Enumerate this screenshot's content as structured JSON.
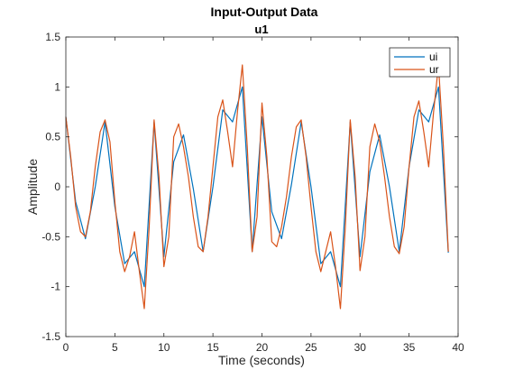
{
  "figure": {
    "title": "Input-Output Data",
    "subtitle": "u1"
  },
  "chart_data": {
    "type": "line",
    "title": "Input-Output Data",
    "subtitle": "u1",
    "xlabel": "Time (seconds)",
    "ylabel": "Amplitude",
    "xlim": [
      0,
      40
    ],
    "ylim": [
      -1.5,
      1.5
    ],
    "xticks": [
      0,
      5,
      10,
      15,
      20,
      25,
      30,
      35,
      40
    ],
    "yticks": [
      -1.5,
      -1,
      -0.5,
      0,
      0.5,
      1,
      1.5
    ],
    "xtick_labels": [
      "0",
      "5",
      "10",
      "15",
      "20",
      "25",
      "30",
      "35",
      "40"
    ],
    "ytick_labels": [
      "-1.5",
      "-1",
      "-0.5",
      "0",
      "0.5",
      "1",
      "1.5"
    ],
    "grid": false,
    "legend_position": "top-right",
    "series": [
      {
        "name": "ui",
        "color": "#0072BD",
        "x": [
          0,
          1,
          2,
          3,
          4,
          5,
          6,
          7,
          8,
          9,
          10,
          11,
          12,
          13,
          14,
          15,
          16,
          17,
          18,
          19,
          20,
          21,
          22,
          23,
          24,
          25,
          26,
          27,
          28,
          29,
          30,
          31,
          32,
          33,
          34,
          35,
          36,
          37,
          38,
          39
        ],
        "y": [
          0.7,
          -0.15,
          -0.52,
          0.0,
          0.65,
          -0.2,
          -0.77,
          -0.65,
          -1.0,
          0.65,
          -0.7,
          0.25,
          0.52,
          -0.02,
          -0.65,
          0.0,
          0.77,
          0.65,
          1.0,
          -0.65,
          0.7,
          -0.25,
          -0.52,
          0.02,
          0.65,
          0.0,
          -0.77,
          -0.65,
          -1.0,
          0.65,
          -0.7,
          0.15,
          0.52,
          0.0,
          -0.65,
          0.2,
          0.77,
          0.65,
          1.0,
          -0.66
        ]
      },
      {
        "name": "ur",
        "color": "#D95319",
        "x": [
          0,
          0.5,
          1,
          1.5,
          2,
          2.5,
          3,
          3.5,
          4,
          4.5,
          5,
          5.5,
          6,
          6.5,
          7,
          7.5,
          8,
          8.5,
          9,
          9.5,
          10,
          10.5,
          11,
          11.5,
          12,
          12.5,
          13,
          13.5,
          14,
          14.5,
          15,
          15.5,
          16,
          16.5,
          17,
          17.5,
          18,
          18.5,
          19,
          19.5,
          20,
          20.5,
          21,
          21.5,
          22,
          22.5,
          23,
          23.5,
          24,
          24.5,
          25,
          25.5,
          26,
          26.5,
          27,
          27.5,
          28,
          28.5,
          29,
          29.5,
          30,
          30.5,
          31,
          31.5,
          32,
          32.5,
          33,
          33.5,
          34,
          34.5,
          35,
          35.5,
          36,
          36.5,
          37,
          37.5,
          38,
          38.5,
          39
        ],
        "y": [
          0.7,
          0.3,
          -0.2,
          -0.45,
          -0.5,
          -0.25,
          0.2,
          0.55,
          0.67,
          0.45,
          -0.15,
          -0.65,
          -0.85,
          -0.7,
          -0.45,
          -0.85,
          -1.22,
          -0.4,
          0.67,
          0.1,
          -0.8,
          -0.5,
          0.5,
          0.63,
          0.4,
          0.1,
          -0.3,
          -0.6,
          -0.65,
          -0.3,
          0.2,
          0.7,
          0.87,
          0.55,
          0.2,
          0.75,
          1.22,
          0.4,
          -0.65,
          -0.3,
          0.84,
          0.3,
          -0.55,
          -0.6,
          -0.4,
          -0.1,
          0.3,
          0.6,
          0.67,
          0.3,
          -0.2,
          -0.65,
          -0.85,
          -0.65,
          -0.45,
          -0.8,
          -1.22,
          -0.4,
          0.67,
          0.1,
          -0.84,
          -0.5,
          0.4,
          0.63,
          0.45,
          0.1,
          -0.3,
          -0.6,
          -0.67,
          -0.4,
          0.2,
          0.7,
          0.86,
          0.55,
          0.2,
          0.75,
          1.22,
          0.4,
          -0.65
        ]
      }
    ]
  }
}
